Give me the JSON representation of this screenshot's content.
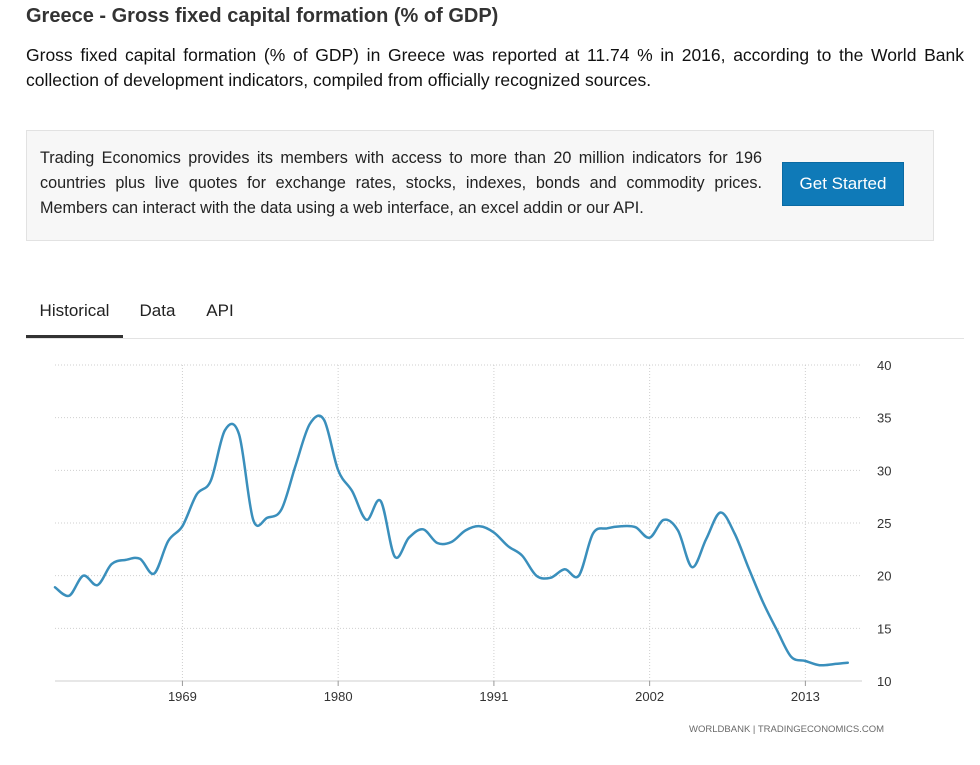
{
  "page": {
    "title": "Greece - Gross fixed capital formation (% of GDP)",
    "description": "Gross fixed capital formation (% of GDP) in Greece was reported at 11.74 % in 2016, according to the World Bank collection of development indicators, compiled from officially recognized sources."
  },
  "promo": {
    "text": "Trading Economics provides its members with access to more than 20 million indicators for 196 countries plus live quotes for exchange rates, stocks, indexes, bonds and commodity prices. Members can interact with the data using a web interface, an excel addin or our API.",
    "button_label": "Get Started"
  },
  "tabs": [
    {
      "label": "Historical",
      "active": true
    },
    {
      "label": "Data",
      "active": false
    },
    {
      "label": "API",
      "active": false
    }
  ],
  "colors": {
    "line": "#3a8fbc",
    "button": "#0f7ab8",
    "grid": "#cfcfcf"
  },
  "chart_data": {
    "type": "line",
    "title": "",
    "xlabel": "",
    "ylabel": "",
    "x_ticks": [
      "1969",
      "1980",
      "1991",
      "2002",
      "2013"
    ],
    "y_ticks": [
      "10",
      "15",
      "20",
      "25",
      "30",
      "35",
      "40"
    ],
    "xlim": [
      1960,
      2017
    ],
    "ylim": [
      10,
      40
    ],
    "grid": true,
    "y_axis_side": "right",
    "credit": "WORLDBANK | TRADINGECONOMICS.COM",
    "series": [
      {
        "name": "Gross fixed capital formation (% of GDP)",
        "x": [
          1960,
          1961,
          1962,
          1963,
          1964,
          1965,
          1966,
          1967,
          1968,
          1969,
          1970,
          1971,
          1972,
          1973,
          1974,
          1975,
          1976,
          1977,
          1978,
          1979,
          1980,
          1981,
          1982,
          1983,
          1984,
          1985,
          1986,
          1987,
          1988,
          1989,
          1990,
          1991,
          1992,
          1993,
          1994,
          1995,
          1996,
          1997,
          1998,
          1999,
          2000,
          2001,
          2002,
          2003,
          2004,
          2005,
          2006,
          2007,
          2008,
          2009,
          2010,
          2011,
          2012,
          2013,
          2014,
          2015,
          2016
        ],
        "values": [
          18.9,
          18.1,
          20.0,
          19.1,
          21.1,
          21.5,
          21.6,
          20.2,
          23.3,
          24.7,
          27.7,
          29.0,
          33.8,
          33.4,
          25.3,
          25.5,
          26.3,
          30.5,
          34.4,
          34.8,
          30.0,
          28.0,
          25.3,
          27.1,
          21.8,
          23.6,
          24.4,
          23.1,
          23.2,
          24.3,
          24.7,
          24.1,
          22.8,
          21.9,
          20.0,
          19.8,
          20.6,
          20.0,
          24.0,
          24.5,
          24.7,
          24.6,
          23.6,
          25.3,
          24.3,
          20.8,
          23.5,
          26.0,
          24.0,
          20.7,
          17.5,
          14.8,
          12.3,
          11.9,
          11.5,
          11.6,
          11.74
        ]
      }
    ]
  }
}
